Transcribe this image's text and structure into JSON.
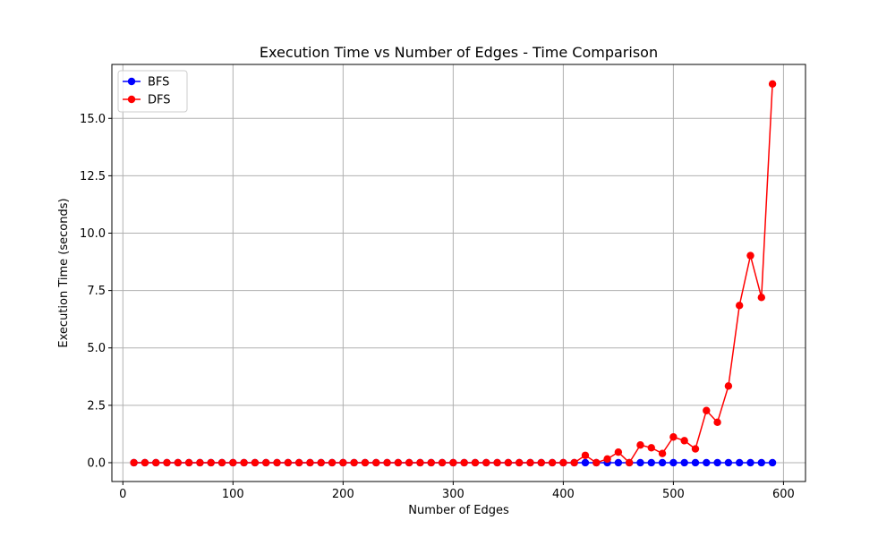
{
  "chart_data": {
    "type": "line",
    "title": "Execution Time vs Number of Edges - Time Comparison",
    "xlabel": "Number of Edges",
    "ylabel": "Execution Time (seconds)",
    "xlim": [
      -10,
      620
    ],
    "ylim": [
      -0.82,
      17.35
    ],
    "xticks": [
      0,
      100,
      200,
      300,
      400,
      500,
      600
    ],
    "yticks": [
      0.0,
      2.5,
      5.0,
      7.5,
      10.0,
      12.5,
      15.0
    ],
    "ytick_labels": [
      "0.0",
      "2.5",
      "5.0",
      "7.5",
      "10.0",
      "12.5",
      "15.0"
    ],
    "grid": true,
    "legend_position": "top-left",
    "x": [
      10,
      20,
      30,
      40,
      50,
      60,
      70,
      80,
      90,
      100,
      110,
      120,
      130,
      140,
      150,
      160,
      170,
      180,
      190,
      200,
      210,
      220,
      230,
      240,
      250,
      260,
      270,
      280,
      290,
      300,
      310,
      320,
      330,
      340,
      350,
      360,
      370,
      380,
      390,
      400,
      410,
      420,
      430,
      440,
      450,
      460,
      470,
      480,
      490,
      500,
      510,
      520,
      530,
      540,
      550,
      560,
      570,
      580,
      590
    ],
    "series": [
      {
        "name": "BFS",
        "color": "#0000ff",
        "values": [
          0,
          0,
          0,
          0,
          0,
          0,
          0,
          0,
          0,
          0,
          0,
          0,
          0,
          0,
          0,
          0,
          0,
          0,
          0,
          0,
          0,
          0,
          0,
          0,
          0,
          0,
          0,
          0,
          0,
          0,
          0,
          0,
          0,
          0,
          0,
          0,
          0,
          0,
          0,
          0,
          0,
          0,
          0,
          0,
          0,
          0,
          0,
          0,
          0,
          0,
          0,
          0,
          0,
          0,
          0,
          0,
          0,
          0,
          0
        ]
      },
      {
        "name": "DFS",
        "color": "#ff0000",
        "values": [
          0,
          0,
          0,
          0,
          0,
          0,
          0,
          0,
          0,
          0,
          0,
          0,
          0,
          0,
          0,
          0,
          0,
          0,
          0,
          0,
          0,
          0,
          0,
          0,
          0,
          0,
          0,
          0,
          0,
          0,
          0,
          0,
          0,
          0,
          0,
          0,
          0,
          0,
          0,
          0,
          0,
          0.32,
          0,
          0.16,
          0.46,
          0,
          0.77,
          0.65,
          0.4,
          1.12,
          0.96,
          0.6,
          2.27,
          1.76,
          3.34,
          6.85,
          9.02,
          7.2,
          16.5
        ]
      }
    ]
  }
}
